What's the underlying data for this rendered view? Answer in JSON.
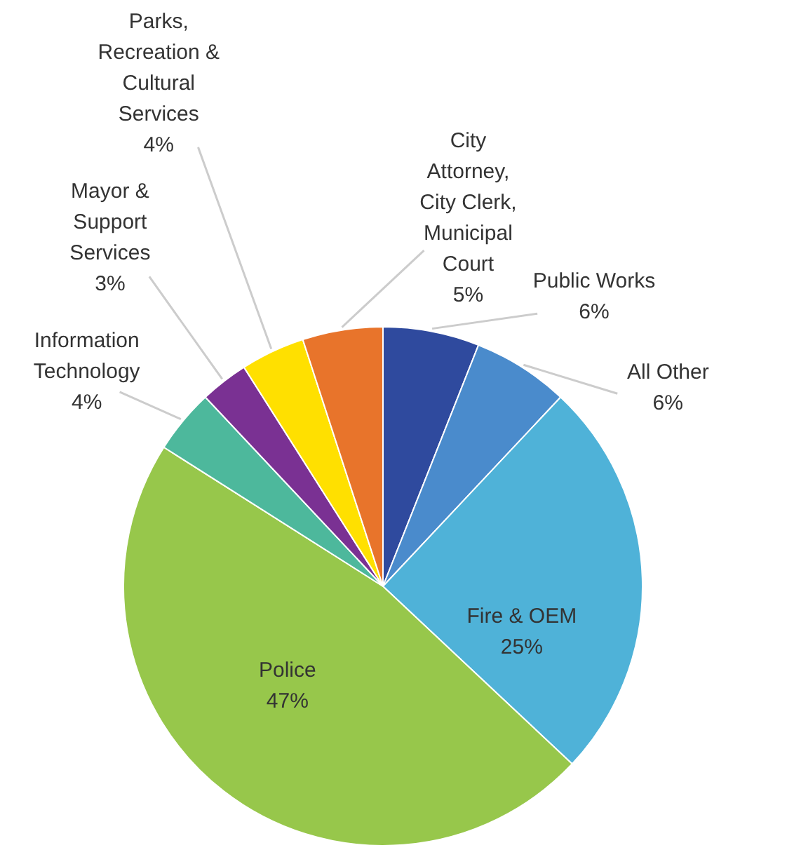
{
  "chart_data": {
    "type": "pie",
    "categories": [
      "Public Works",
      "All Other",
      "Fire & OEM",
      "Police",
      "Information Technology",
      "Mayor & Support Services",
      "Parks, Recreation & Cultural Services",
      "City Attorney, City Clerk, Municipal Court"
    ],
    "values": [
      6,
      6,
      25,
      47,
      4,
      3,
      4,
      5
    ],
    "value_labels": [
      "6%",
      "6%",
      "25%",
      "47%",
      "4%",
      "3%",
      "4%",
      "5%"
    ],
    "colors": [
      "#2f4a9e",
      "#4a8bcc",
      "#4fb2d8",
      "#97c74b",
      "#4db89c",
      "#7a3193",
      "#ffe000",
      "#e8742b"
    ]
  }
}
